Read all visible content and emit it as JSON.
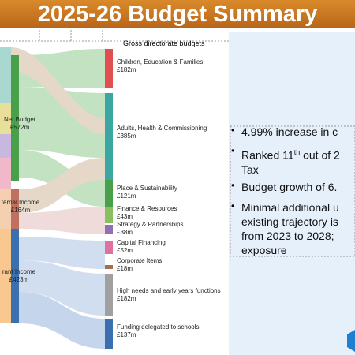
{
  "header": {
    "title": "2025-26 Budget Summary"
  },
  "diagram": {
    "heading": "Gross directorate budgets",
    "sources": [
      {
        "label": "Net Budget",
        "amount": "£572m"
      },
      {
        "label": "ternal Income",
        "amount": "£164m"
      },
      {
        "label": "rant Income",
        "amount": "£423m"
      }
    ],
    "targets": [
      {
        "label": "Children, Education & Families",
        "amount": "£182m"
      },
      {
        "label": "Adults, Health & Commissioning",
        "amount": "£385m"
      },
      {
        "label": "Place & Sustainability",
        "amount": "£121m"
      },
      {
        "label": "Finance & Resources",
        "amount": "£43m"
      },
      {
        "label": "Strategy & Partnerships",
        "amount": "£38m"
      },
      {
        "label": "Capital Financing",
        "amount": "£52m"
      },
      {
        "label": "Corporate Items",
        "amount": "£18m"
      },
      {
        "label": "High needs and early years functions",
        "amount": "£182m"
      },
      {
        "label": "Funding delegated to schools",
        "amount": "£137m"
      }
    ]
  },
  "bullets": [
    {
      "text": "4.99% increase in c"
    },
    {
      "pre": "Ranked 11",
      "sup": "th",
      "post": " out of 2",
      "line2": "Tax"
    },
    {
      "text": "Budget growth of 6."
    },
    {
      "text": "Minimal additional u",
      "line2": "existing trajectory is",
      "line3": "from 2023 to 2028;",
      "line4": "exposure"
    }
  ]
}
